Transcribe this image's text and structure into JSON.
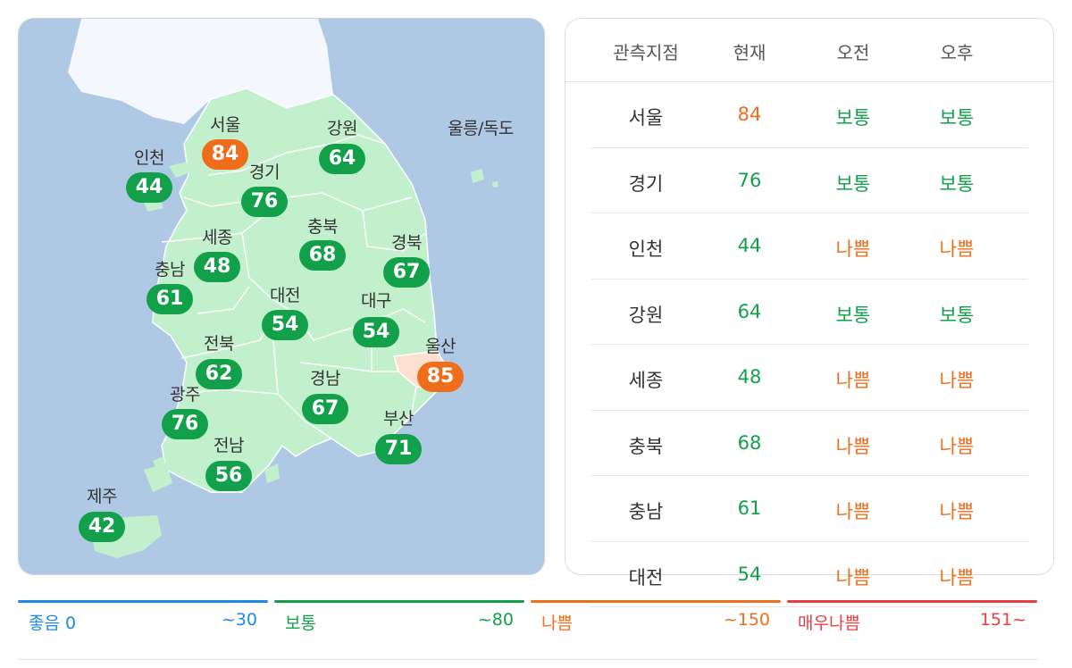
{
  "map": {
    "regions": [
      {
        "key": "seoul",
        "name": "서울",
        "value": "84",
        "level": "orange"
      },
      {
        "key": "incheon",
        "name": "인천",
        "value": "44",
        "level": "green"
      },
      {
        "key": "gangwon",
        "name": "강원",
        "value": "64",
        "level": "green"
      },
      {
        "key": "gyeonggi",
        "name": "경기",
        "value": "76",
        "level": "green"
      },
      {
        "key": "sejong",
        "name": "세종",
        "value": "48",
        "level": "green"
      },
      {
        "key": "chungbuk",
        "name": "충북",
        "value": "68",
        "level": "green"
      },
      {
        "key": "gyeongbuk",
        "name": "경북",
        "value": "67",
        "level": "green"
      },
      {
        "key": "chungnam",
        "name": "충남",
        "value": "61",
        "level": "green"
      },
      {
        "key": "daejeon",
        "name": "대전",
        "value": "54",
        "level": "green"
      },
      {
        "key": "daegu",
        "name": "대구",
        "value": "54",
        "level": "green"
      },
      {
        "key": "ulsan",
        "name": "울산",
        "value": "85",
        "level": "orange"
      },
      {
        "key": "jeonbuk",
        "name": "전북",
        "value": "62",
        "level": "green"
      },
      {
        "key": "gyeongnam",
        "name": "경남",
        "value": "67",
        "level": "green"
      },
      {
        "key": "gwangju",
        "name": "광주",
        "value": "76",
        "level": "green"
      },
      {
        "key": "busan",
        "name": "부산",
        "value": "71",
        "level": "green"
      },
      {
        "key": "jeonnam",
        "name": "전남",
        "value": "56",
        "level": "green"
      },
      {
        "key": "jeju",
        "name": "제주",
        "value": "42",
        "level": "green"
      }
    ],
    "island_label": "울릉/독도"
  },
  "table": {
    "headers": {
      "station": "관측지점",
      "current": "현재",
      "am": "오전",
      "pm": "오후"
    },
    "rows": [
      {
        "name": "서울",
        "current": "84",
        "current_level": "orange",
        "am": "보통",
        "am_level": "green",
        "pm": "보통",
        "pm_level": "green"
      },
      {
        "name": "경기",
        "current": "76",
        "current_level": "green",
        "am": "보통",
        "am_level": "green",
        "pm": "보통",
        "pm_level": "green"
      },
      {
        "name": "인천",
        "current": "44",
        "current_level": "green",
        "am": "나쁨",
        "am_level": "orange",
        "pm": "나쁨",
        "pm_level": "orange"
      },
      {
        "name": "강원",
        "current": "64",
        "current_level": "green",
        "am": "보통",
        "am_level": "green",
        "pm": "보통",
        "pm_level": "green"
      },
      {
        "name": "세종",
        "current": "48",
        "current_level": "green",
        "am": "나쁨",
        "am_level": "orange",
        "pm": "나쁨",
        "pm_level": "orange"
      },
      {
        "name": "충북",
        "current": "68",
        "current_level": "green",
        "am": "나쁨",
        "am_level": "orange",
        "pm": "나쁨",
        "pm_level": "orange"
      },
      {
        "name": "충남",
        "current": "61",
        "current_level": "green",
        "am": "나쁨",
        "am_level": "orange",
        "pm": "나쁨",
        "pm_level": "orange"
      },
      {
        "name": "대전",
        "current": "54",
        "current_level": "green",
        "am": "나쁨",
        "am_level": "orange",
        "pm": "나쁨",
        "pm_level": "orange"
      }
    ]
  },
  "legend": [
    {
      "label": "좋음 0",
      "max": "~30",
      "color": "#1e88e5"
    },
    {
      "label": "보통",
      "max": "~80",
      "color": "#13a04b"
    },
    {
      "label": "나쁨",
      "max": "~150",
      "color": "#f06d1c"
    },
    {
      "label": "매우나쁨",
      "max": "151~",
      "color": "#e84040"
    }
  ],
  "colors": {
    "green": "#13a04b",
    "orange": "#f06d1c",
    "land": "#c2f0cd",
    "sea": "#afc9e5",
    "north": "#f4f7fb",
    "ulsan_fill": "#fde0cf"
  }
}
